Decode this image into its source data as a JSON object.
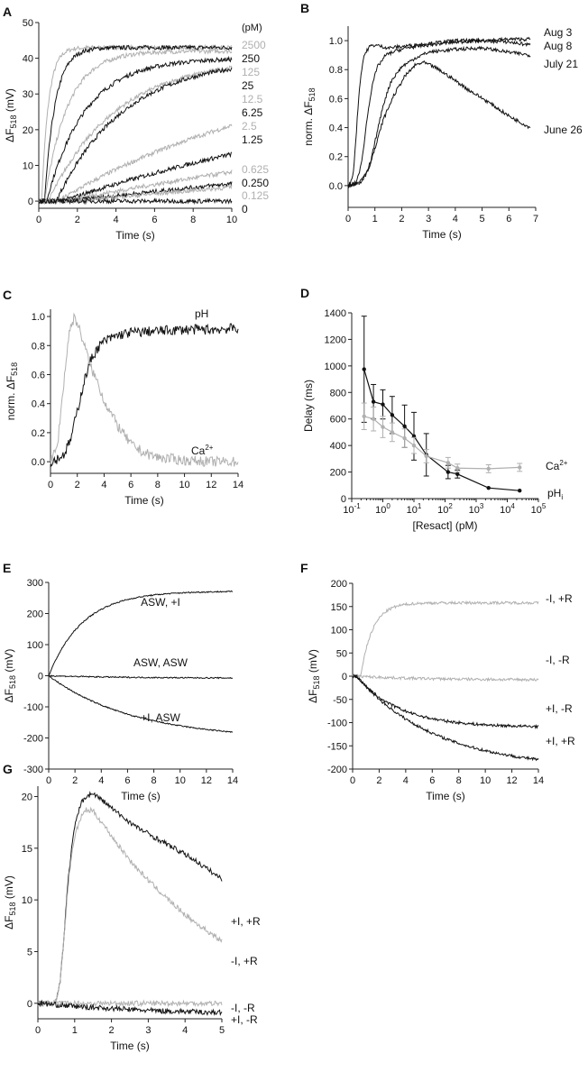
{
  "colors": {
    "black": "#111111",
    "gray": "#b0b0b0",
    "axis": "#222222"
  },
  "chart_data": [
    {
      "panel": "A",
      "type": "line",
      "xlabel": "Time (s)",
      "ylabel": "ΔF518 (mV)",
      "xlim": [
        0,
        10
      ],
      "ylim": [
        -2,
        50
      ],
      "xticks": [
        0,
        2,
        4,
        6,
        8,
        10
      ],
      "yticks": [
        0,
        10,
        20,
        30,
        40,
        50
      ],
      "legend_title": "(pM)",
      "series": [
        {
          "name": "2500",
          "color": "gray",
          "plateau": 43,
          "tau": 0.35,
          "delay": 0.15
        },
        {
          "name": "250",
          "color": "black",
          "plateau": 43,
          "tau": 0.55,
          "delay": 0.3
        },
        {
          "name": "125",
          "color": "gray",
          "plateau": 42,
          "tau": 1.2,
          "delay": 0.3
        },
        {
          "name": "25",
          "color": "black",
          "plateau": 40,
          "tau": 2.0,
          "delay": 0.4
        },
        {
          "name": "12.5",
          "color": "gray",
          "plateau": 40,
          "tau": 3.5,
          "delay": 0.5
        },
        {
          "name": "6.25",
          "color": "black",
          "plateau": 40,
          "tau": 3.5,
          "delay": 0.9
        },
        {
          "name": "2.5",
          "color": "gray",
          "plateau": 40,
          "tau": 12,
          "delay": 1.0
        },
        {
          "name": "1.25",
          "color": "black",
          "plateau": 40,
          "tau": 22,
          "delay": 1.2
        },
        {
          "name": "0.625",
          "color": "gray",
          "plateau": 40,
          "tau": 38,
          "delay": 1.3
        },
        {
          "name": "0.250",
          "color": "black",
          "plateau": 40,
          "tau": 65,
          "delay": 1.5
        },
        {
          "name": "0.125",
          "color": "gray",
          "plateau": 40,
          "tau": 80,
          "delay": 1.8
        },
        {
          "name": "0",
          "color": "black",
          "plateau": 0,
          "tau": 1,
          "delay": 0
        }
      ]
    },
    {
      "panel": "B",
      "type": "line",
      "xlabel": "Time (s)",
      "ylabel": "norm. ΔF518",
      "xlim": [
        0,
        7
      ],
      "ylim": [
        -0.15,
        1.1
      ],
      "xticks": [
        0,
        1,
        2,
        3,
        4,
        5,
        6,
        7
      ],
      "yticks": [
        0.0,
        0.2,
        0.4,
        0.6,
        0.8,
        1.0
      ],
      "series": [
        {
          "name": "Aug 3",
          "color": "black",
          "x": [
            0,
            0.1,
            0.2,
            0.3,
            0.4,
            0.5,
            0.6,
            0.8,
            1.0,
            1.5,
            2,
            3,
            4,
            5,
            6,
            6.8
          ],
          "y": [
            0,
            0.02,
            0.1,
            0.35,
            0.62,
            0.8,
            0.9,
            0.96,
            0.97,
            0.95,
            0.96,
            0.98,
            1.0,
            1.0,
            1.01,
            1.01
          ]
        },
        {
          "name": "Aug 8",
          "color": "black",
          "x": [
            0,
            0.3,
            0.5,
            0.7,
            0.9,
            1.1,
            1.4,
            1.8,
            2.2,
            3,
            4,
            5,
            6,
            6.8
          ],
          "y": [
            0,
            0.02,
            0.15,
            0.45,
            0.7,
            0.82,
            0.9,
            0.93,
            0.95,
            0.97,
            0.99,
            1.0,
            0.99,
            0.97
          ]
        },
        {
          "name": "July 21",
          "color": "black",
          "x": [
            0,
            0.5,
            0.8,
            1.0,
            1.3,
            1.6,
            2.0,
            2.5,
            3,
            4,
            5,
            6,
            6.8
          ],
          "y": [
            0,
            0.02,
            0.12,
            0.3,
            0.55,
            0.72,
            0.82,
            0.88,
            0.92,
            0.94,
            0.95,
            0.92,
            0.9
          ]
        },
        {
          "name": "June 26",
          "color": "black",
          "x": [
            0,
            0.4,
            0.7,
            1.0,
            1.3,
            1.7,
            2.1,
            2.5,
            2.8,
            3.2,
            3.8,
            4.5,
            5.2,
            6.0,
            6.8
          ],
          "y": [
            0,
            0.02,
            0.1,
            0.25,
            0.45,
            0.62,
            0.75,
            0.83,
            0.85,
            0.82,
            0.75,
            0.66,
            0.58,
            0.48,
            0.4
          ]
        }
      ]
    },
    {
      "panel": "C",
      "type": "line",
      "xlabel": "Time (s)",
      "ylabel": "norm. ΔF518",
      "xlim": [
        0,
        14
      ],
      "ylim": [
        -0.08,
        1.05
      ],
      "xticks": [
        0,
        2,
        4,
        6,
        8,
        10,
        12,
        14
      ],
      "yticks": [
        0.0,
        0.2,
        0.4,
        0.6,
        0.8,
        1.0
      ],
      "series": [
        {
          "name": "pH",
          "color": "black",
          "x": [
            0,
            0.5,
            1.0,
            1.5,
            2.0,
            2.5,
            3.0,
            3.5,
            4.0,
            5,
            6,
            8,
            10,
            12,
            14
          ],
          "y": [
            0,
            0.02,
            0.05,
            0.15,
            0.35,
            0.55,
            0.7,
            0.78,
            0.83,
            0.87,
            0.89,
            0.9,
            0.91,
            0.91,
            0.92
          ]
        },
        {
          "name": "Ca2+",
          "color": "gray",
          "x": [
            0,
            0.5,
            1.0,
            1.4,
            1.8,
            2.2,
            2.6,
            3,
            3.5,
            4,
            5,
            6,
            7,
            8,
            10,
            12,
            14
          ],
          "y": [
            0,
            0.1,
            0.55,
            0.9,
            1.0,
            0.9,
            0.78,
            0.65,
            0.55,
            0.42,
            0.25,
            0.12,
            0.06,
            0.03,
            0.01,
            0.0,
            0.0
          ]
        }
      ]
    },
    {
      "panel": "D",
      "type": "line",
      "xlabel": "[Resact] (pM)",
      "ylabel": "Delay (ms)",
      "xscale": "log",
      "xlim": [
        0.1,
        100000
      ],
      "ylim": [
        0,
        1400
      ],
      "xtick_exponents": [
        -1,
        0,
        1,
        2,
        3,
        4,
        5
      ],
      "yticks": [
        0,
        200,
        400,
        600,
        800,
        1000,
        1200,
        1400
      ],
      "series": [
        {
          "name": "pHi",
          "color": "black",
          "x": [
            0.25,
            0.5,
            1,
            2,
            5,
            10,
            25,
            125,
            250,
            2500,
            25000
          ],
          "y": [
            975,
            730,
            710,
            630,
            545,
            470,
            330,
            200,
            185,
            80,
            60
          ],
          "err": [
            400,
            130,
            110,
            140,
            160,
            180,
            160,
            50,
            30,
            0,
            0
          ]
        },
        {
          "name": "Ca2+",
          "color": "gray",
          "x": [
            0.25,
            0.5,
            1,
            2,
            5,
            10,
            25,
            125,
            250,
            2500,
            25000
          ],
          "y": [
            620,
            600,
            540,
            500,
            455,
            400,
            320,
            270,
            230,
            225,
            235
          ],
          "err": [
            100,
            90,
            80,
            70,
            70,
            60,
            50,
            40,
            30,
            30,
            30
          ]
        }
      ]
    },
    {
      "panel": "E",
      "type": "line",
      "xlabel": "Time (s)",
      "ylabel": "ΔF518 (mV)",
      "xlim": [
        0,
        14
      ],
      "ylim": [
        -300,
        300
      ],
      "xticks": [
        0,
        2,
        4,
        6,
        8,
        10,
        12,
        14
      ],
      "yticks": [
        -300,
        -200,
        -100,
        0,
        100,
        200,
        300
      ],
      "series": [
        {
          "name": "ASW, +I",
          "color": "black",
          "plateau": 272,
          "tau": 2.6,
          "delay": 0
        },
        {
          "name": "ASW, ASW",
          "color": "black",
          "plateau": -8,
          "tau": 6,
          "delay": 0
        },
        {
          "name": "+I, ASW",
          "color": "black",
          "plateau": -205,
          "tau": 6.5,
          "delay": 0
        }
      ]
    },
    {
      "panel": "F",
      "type": "line",
      "xlabel": "Time (s)",
      "ylabel": "ΔF518 (mV)",
      "xlim": [
        0,
        14
      ],
      "ylim": [
        -200,
        200
      ],
      "xticks": [
        0,
        2,
        4,
        6,
        8,
        10,
        12,
        14
      ],
      "yticks": [
        -200,
        -150,
        -100,
        -50,
        0,
        50,
        100,
        150,
        200
      ],
      "series": [
        {
          "name": "-I, +R",
          "color": "gray",
          "plateau": 158,
          "tau": 0.9,
          "delay": 0.6
        },
        {
          "name": "-I, -R",
          "color": "gray",
          "plateau": -8,
          "tau": 5,
          "delay": 0.3
        },
        {
          "name": "+I, -R",
          "color": "black",
          "plateau": -110,
          "tau": 3.2,
          "delay": 0.3
        },
        {
          "name": "+I, +R",
          "color": "black",
          "plateau": -200,
          "tau": 6.0,
          "delay": 0.3
        }
      ]
    },
    {
      "panel": "G",
      "type": "line",
      "xlabel": "Time (s)",
      "ylabel": "ΔF518 (mV)",
      "xlim": [
        0,
        5
      ],
      "ylim": [
        -1.5,
        21
      ],
      "xticks": [
        0,
        1,
        2,
        3,
        4,
        5
      ],
      "yticks": [
        0,
        5,
        10,
        15,
        20
      ],
      "series": [
        {
          "name": "+I, +R",
          "color": "black",
          "x": [
            0,
            0.4,
            0.5,
            0.6,
            0.7,
            0.8,
            0.9,
            1.0,
            1.1,
            1.2,
            1.3,
            1.5,
            1.8,
            2.2,
            2.7,
            3.2,
            3.7,
            4.2,
            4.6,
            5.0
          ],
          "y": [
            0,
            0,
            0.3,
            2,
            6,
            11,
            14.5,
            17,
            18.5,
            19.5,
            20,
            20.3,
            19.5,
            18.3,
            17,
            16,
            15,
            14,
            13,
            12
          ]
        },
        {
          "name": "-I, +R",
          "color": "gray",
          "x": [
            0,
            0.4,
            0.5,
            0.6,
            0.7,
            0.8,
            0.9,
            1.0,
            1.1,
            1.2,
            1.3,
            1.5,
            1.8,
            2.2,
            2.7,
            3.2,
            3.7,
            4.2,
            4.6,
            5.0
          ],
          "y": [
            0,
            0,
            0.3,
            2,
            6,
            10.5,
            14,
            16,
            17.3,
            18.2,
            18.7,
            18.6,
            17.2,
            15.2,
            13,
            11.2,
            9.5,
            8,
            7,
            6
          ]
        },
        {
          "name": "-I, -R",
          "color": "gray",
          "x": [
            0,
            1,
            2,
            3,
            4,
            5
          ],
          "y": [
            0,
            0,
            0,
            0,
            0,
            0
          ]
        },
        {
          "name": "+I, -R",
          "color": "black",
          "x": [
            0,
            1,
            2,
            3,
            4,
            5
          ],
          "y": [
            0,
            -0.3,
            -0.5,
            -0.7,
            -0.8,
            -0.9
          ]
        }
      ]
    }
  ]
}
